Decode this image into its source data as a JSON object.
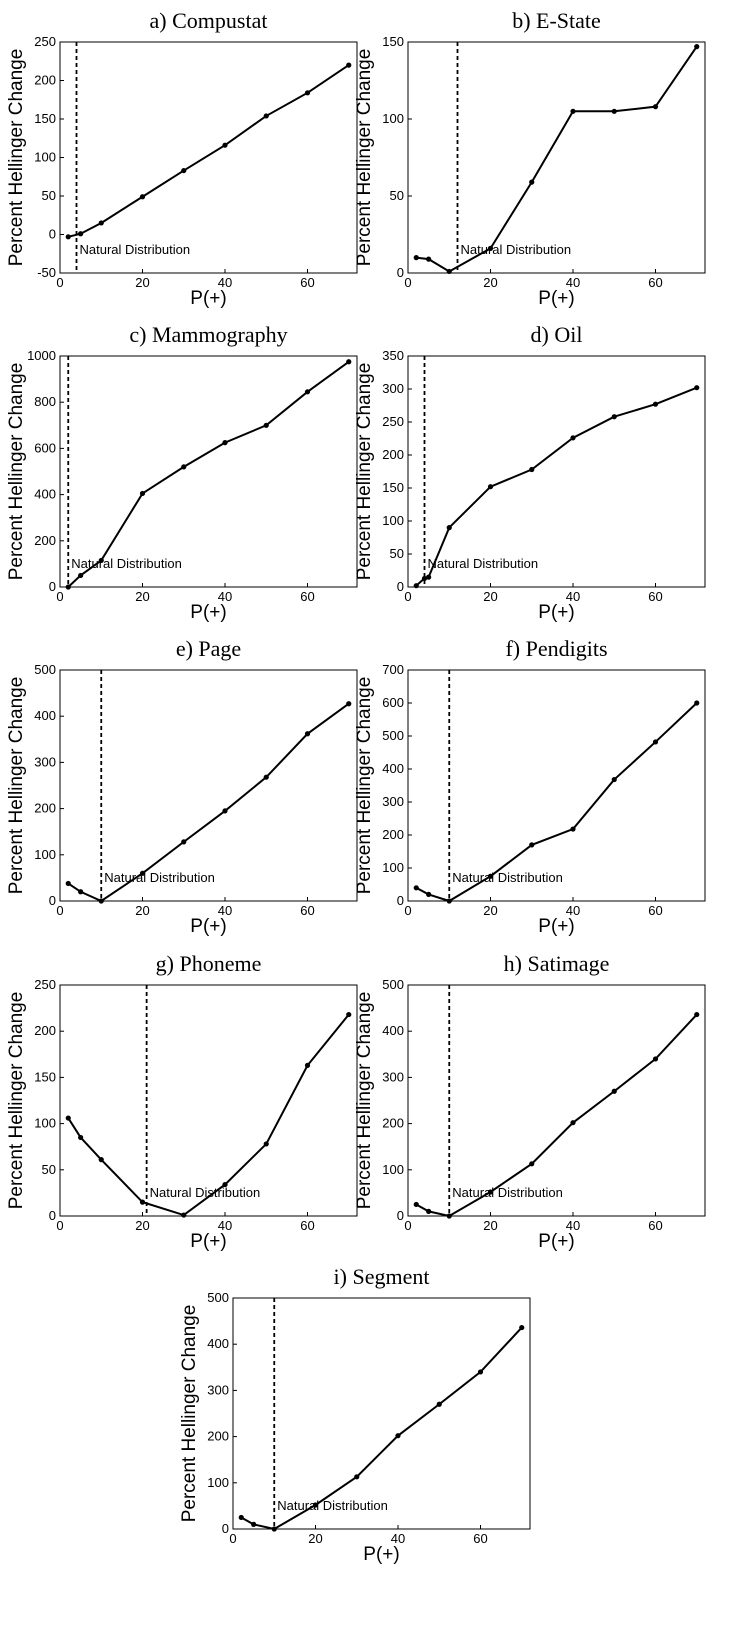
{
  "figure": {
    "chart_data": [
      {
        "type": "line",
        "title": "a) Compustat",
        "xlabel": "P(+)",
        "ylabel": "Percent Hellinger Change",
        "xlim": [
          0,
          72
        ],
        "ylim": [
          -50,
          250
        ],
        "xticks": [
          0,
          20,
          40,
          60
        ],
        "yticks": [
          -50,
          0,
          50,
          100,
          150,
          200,
          250
        ],
        "x": [
          2,
          5,
          10,
          20,
          30,
          40,
          50,
          60,
          70
        ],
        "y": [
          -3,
          1,
          15,
          49,
          83,
          116,
          154,
          184,
          220
        ],
        "annotation": {
          "text": "Natural Distribution",
          "x": 4
        },
        "grid": false,
        "legend": "none"
      },
      {
        "type": "line",
        "title": "b) E-State",
        "xlabel": "P(+)",
        "ylabel": "Percent Hellinger Change",
        "xlim": [
          0,
          72
        ],
        "ylim": [
          0,
          150
        ],
        "xticks": [
          0,
          20,
          40,
          60
        ],
        "yticks": [
          0,
          50,
          100,
          150
        ],
        "x": [
          2,
          5,
          10,
          20,
          30,
          40,
          50,
          60,
          70
        ],
        "y": [
          10,
          9,
          1,
          16,
          59,
          105,
          105,
          108,
          147
        ],
        "annotation": {
          "text": "Natural Distribution",
          "x": 12
        },
        "grid": false,
        "legend": "none"
      },
      {
        "type": "line",
        "title": "c) Mammography",
        "xlabel": "P(+)",
        "ylabel": "Percent Hellinger Change",
        "xlim": [
          0,
          72
        ],
        "ylim": [
          0,
          1000
        ],
        "xticks": [
          0,
          20,
          40,
          60
        ],
        "yticks": [
          0,
          200,
          400,
          600,
          800,
          1000
        ],
        "x": [
          2,
          5,
          10,
          20,
          30,
          40,
          50,
          60,
          70
        ],
        "y": [
          0,
          50,
          115,
          405,
          520,
          625,
          700,
          845,
          975
        ],
        "annotation": {
          "text": "Natural Distribution",
          "x": 2
        },
        "grid": false,
        "legend": "none"
      },
      {
        "type": "line",
        "title": "d) Oil",
        "xlabel": "P(+)",
        "ylabel": "Percent Hellinger Change",
        "xlim": [
          0,
          72
        ],
        "ylim": [
          0,
          350
        ],
        "xticks": [
          0,
          20,
          40,
          60
        ],
        "yticks": [
          0,
          50,
          100,
          150,
          200,
          250,
          300,
          350
        ],
        "x": [
          2,
          4,
          5,
          10,
          20,
          30,
          40,
          50,
          60,
          70
        ],
        "y": [
          2,
          13,
          15,
          90,
          152,
          178,
          226,
          258,
          277,
          302
        ],
        "annotation": {
          "text": "Natural Distribution",
          "x": 4
        },
        "grid": false,
        "legend": "none"
      },
      {
        "type": "line",
        "title": "e) Page",
        "xlabel": "P(+)",
        "ylabel": "Percent Hellinger Change",
        "xlim": [
          0,
          72
        ],
        "ylim": [
          0,
          500
        ],
        "xticks": [
          0,
          20,
          40,
          60
        ],
        "yticks": [
          0,
          100,
          200,
          300,
          400,
          500
        ],
        "x": [
          2,
          5,
          10,
          20,
          30,
          40,
          50,
          60,
          70
        ],
        "y": [
          38,
          20,
          0,
          60,
          128,
          195,
          268,
          362,
          427
        ],
        "annotation": {
          "text": "Natural Distribution",
          "x": 10
        },
        "grid": false,
        "legend": "none"
      },
      {
        "type": "line",
        "title": "f) Pendigits",
        "xlabel": "P(+)",
        "ylabel": "Percent Hellinger Change",
        "xlim": [
          0,
          72
        ],
        "ylim": [
          0,
          700
        ],
        "xticks": [
          0,
          20,
          40,
          60
        ],
        "yticks": [
          0,
          100,
          200,
          300,
          400,
          500,
          600,
          700
        ],
        "x": [
          2,
          5,
          10,
          20,
          30,
          40,
          50,
          60,
          70
        ],
        "y": [
          40,
          20,
          0,
          75,
          170,
          218,
          368,
          482,
          600
        ],
        "annotation": {
          "text": "Natural Distribution",
          "x": 10
        },
        "grid": false,
        "legend": "none"
      },
      {
        "type": "line",
        "title": "g) Phoneme",
        "xlabel": "P(+)",
        "ylabel": "Percent Hellinger Change",
        "xlim": [
          0,
          72
        ],
        "ylim": [
          0,
          250
        ],
        "xticks": [
          0,
          20,
          40,
          60
        ],
        "yticks": [
          0,
          50,
          100,
          150,
          200,
          250
        ],
        "x": [
          2,
          5,
          10,
          20,
          30,
          40,
          50,
          60,
          70
        ],
        "y": [
          106,
          85,
          61,
          15,
          1,
          34,
          78,
          163,
          218
        ],
        "annotation": {
          "text": "Natural Distribution",
          "x": 21
        },
        "grid": false,
        "legend": "none"
      },
      {
        "type": "line",
        "title": "h) Satimage",
        "xlabel": "P(+)",
        "ylabel": "Percent Hellinger Change",
        "xlim": [
          0,
          72
        ],
        "ylim": [
          0,
          500
        ],
        "xticks": [
          0,
          20,
          40,
          60
        ],
        "yticks": [
          0,
          100,
          200,
          300,
          400,
          500
        ],
        "x": [
          2,
          5,
          10,
          20,
          30,
          40,
          50,
          60,
          70
        ],
        "y": [
          25,
          10,
          0,
          52,
          113,
          202,
          270,
          340,
          436
        ],
        "annotation": {
          "text": "Natural Distribution",
          "x": 10
        },
        "grid": false,
        "legend": "none"
      },
      {
        "type": "line",
        "title": "i) Segment",
        "xlabel": "P(+)",
        "ylabel": "Percent Hellinger Change",
        "xlim": [
          0,
          72
        ],
        "ylim": [
          0,
          500
        ],
        "xticks": [
          0,
          20,
          40,
          60
        ],
        "yticks": [
          0,
          100,
          200,
          300,
          400,
          500
        ],
        "x": [
          2,
          5,
          10,
          20,
          30,
          40,
          50,
          60,
          70
        ],
        "y": [
          25,
          10,
          0,
          52,
          113,
          202,
          270,
          340,
          436
        ],
        "annotation": {
          "text": "Natural Distribution",
          "x": 10
        },
        "grid": false,
        "legend": "none"
      }
    ]
  }
}
